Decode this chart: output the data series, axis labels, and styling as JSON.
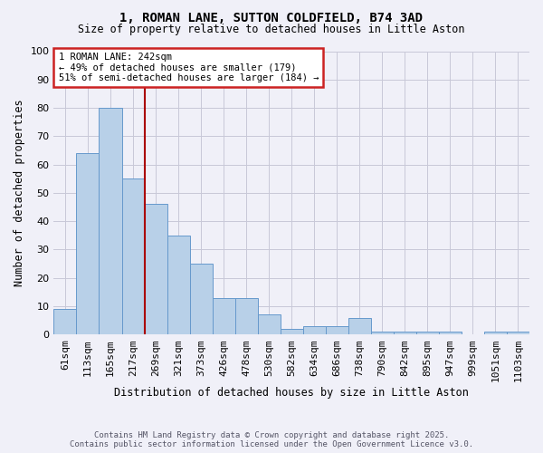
{
  "title_line1": "1, ROMAN LANE, SUTTON COLDFIELD, B74 3AD",
  "title_line2": "Size of property relative to detached houses in Little Aston",
  "xlabel": "Distribution of detached houses by size in Little Aston",
  "ylabel": "Number of detached properties",
  "bin_labels": [
    "61sqm",
    "113sqm",
    "165sqm",
    "217sqm",
    "269sqm",
    "321sqm",
    "373sqm",
    "426sqm",
    "478sqm",
    "530sqm",
    "582sqm",
    "634sqm",
    "686sqm",
    "738sqm",
    "790sqm",
    "842sqm",
    "895sqm",
    "947sqm",
    "999sqm",
    "1051sqm",
    "1103sqm"
  ],
  "bar_values": [
    9,
    64,
    80,
    55,
    46,
    35,
    25,
    13,
    13,
    7,
    2,
    3,
    3,
    6,
    1,
    1,
    1,
    1,
    0,
    1,
    1
  ],
  "bar_color": "#b8d0e8",
  "bar_edge_color": "#6699cc",
  "vline_color": "#aa0000",
  "annotation_line1": "1 ROMAN LANE: 242sqm",
  "annotation_line2": "← 49% of detached houses are smaller (179)",
  "annotation_line3": "51% of semi-detached houses are larger (184) →",
  "annotation_box_color": "white",
  "annotation_box_edge": "#cc2222",
  "ylim": [
    0,
    100
  ],
  "yticks": [
    0,
    10,
    20,
    30,
    40,
    50,
    60,
    70,
    80,
    90,
    100
  ],
  "footer_line1": "Contains HM Land Registry data © Crown copyright and database right 2025.",
  "footer_line2": "Contains public sector information licensed under the Open Government Licence v3.0.",
  "bg_color": "#f0f0f8"
}
